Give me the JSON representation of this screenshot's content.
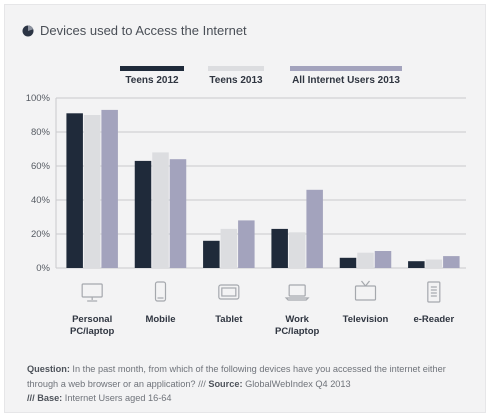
{
  "title": "Devices used to Access the Internet",
  "colors": {
    "teens_2012": "#1f2a3a",
    "teens_2013": "#dcdde0",
    "all_users_2013": "#a3a3bd",
    "axis_text": "#555a62",
    "grid": "#c9cacd",
    "icon": "#a5a8ad"
  },
  "chart_data": {
    "type": "bar",
    "categories": [
      {
        "line1": "Personal",
        "line2": "PC/laptop",
        "icon": "monitor-icon"
      },
      {
        "line1": "Mobile",
        "line2": "",
        "icon": "phone-icon"
      },
      {
        "line1": "Tablet",
        "line2": "",
        "icon": "tablet-icon"
      },
      {
        "line1": "Work",
        "line2": "PC/laptop",
        "icon": "laptop-icon"
      },
      {
        "line1": "Television",
        "line2": "",
        "icon": "tv-icon"
      },
      {
        "line1": "e-Reader",
        "line2": "",
        "icon": "ereader-icon"
      }
    ],
    "series": [
      {
        "name": "Teens 2012",
        "values": [
          91,
          63,
          16,
          23,
          6,
          4
        ]
      },
      {
        "name": "Teens 2013",
        "values": [
          90,
          68,
          23,
          21,
          9,
          5
        ]
      },
      {
        "name": "All Internet Users 2013",
        "values": [
          93,
          64,
          28,
          46,
          10,
          7
        ]
      }
    ],
    "yticks": [
      "0%",
      "20%",
      "40%",
      "60%",
      "80%",
      "100%"
    ],
    "ylim": [
      0,
      100
    ],
    "grid": true,
    "legend": "top-center"
  },
  "footnote": {
    "question_label": "Question:",
    "question_text": " In the past month, from which of the following devices have you accessed the internet either through a web browser or an application? /// ",
    "source_label": "Source:",
    "source_text": " GlobalWebIndex Q4 2013",
    "base_label": "/// Base:",
    "base_text": " Internet Users aged 16-64"
  }
}
